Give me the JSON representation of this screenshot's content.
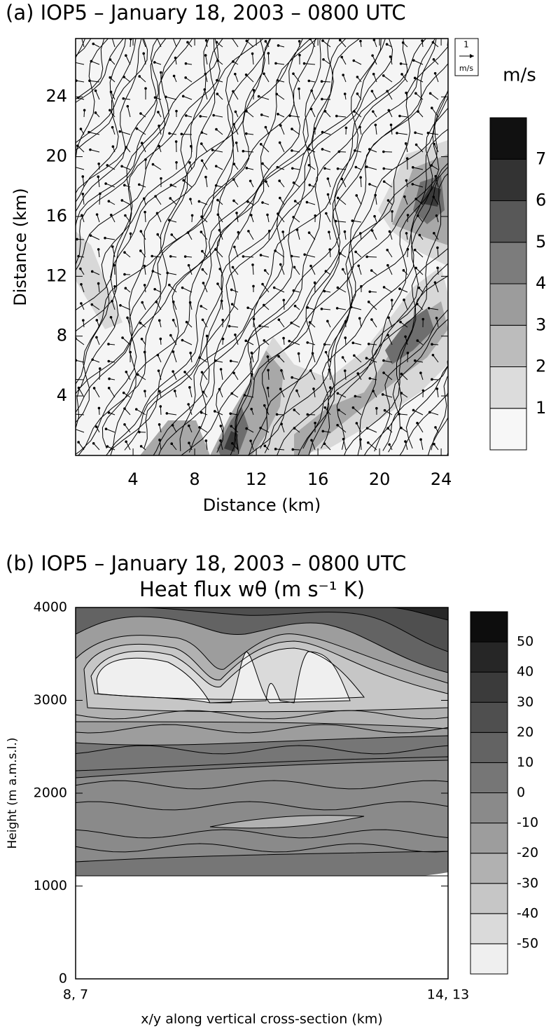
{
  "chart_data": [
    {
      "type": "contour",
      "title": "(a) IOP5 – January 18, 2003 – 0800 UTC",
      "x_label": "Distance (km)",
      "y_label": "Distance (km)",
      "xlim": [
        0.27,
        24.45
      ],
      "ylim": [
        0.02,
        27.9
      ],
      "xticks": [
        4,
        8,
        12,
        16,
        20,
        24
      ],
      "yticks": [
        4,
        8,
        12,
        16,
        20,
        24
      ],
      "colorbar": {
        "label": "m/s",
        "levels": [
          1,
          2,
          3,
          4,
          5,
          6,
          7
        ],
        "colors": [
          "#f7f7f7",
          "#dcdcdc",
          "#bcbcbc",
          "#9c9c9c",
          "#7c7c7c",
          "#585858",
          "#333333",
          "#111111"
        ]
      },
      "vector_key": {
        "value": "1",
        "unit": "m/s"
      }
    },
    {
      "type": "contour",
      "title": "(b) IOP5 – January 18, 2003 – 0800 UTC",
      "subtitle": "Heat flux wθ (m s⁻¹ K)",
      "x_label": "x/y along vertical cross-section (km)",
      "y_label": "Height (m a.m.s.l.)",
      "categories": [
        "8, 7",
        "14, 13"
      ],
      "ylim": [
        0,
        4000
      ],
      "yticks": [
        0,
        1000,
        2000,
        3000,
        4000
      ],
      "colorbar": {
        "levels": [
          -50,
          -40,
          -30,
          -20,
          -10,
          0,
          10,
          20,
          30,
          40,
          50
        ],
        "colors": [
          "#efefef",
          "#dadada",
          "#c6c6c6",
          "#b1b1b1",
          "#9d9d9d",
          "#8a8a8a",
          "#767676",
          "#636363",
          "#4f4f4f",
          "#3b3b3b",
          "#262626",
          "#0d0d0d"
        ]
      }
    }
  ]
}
